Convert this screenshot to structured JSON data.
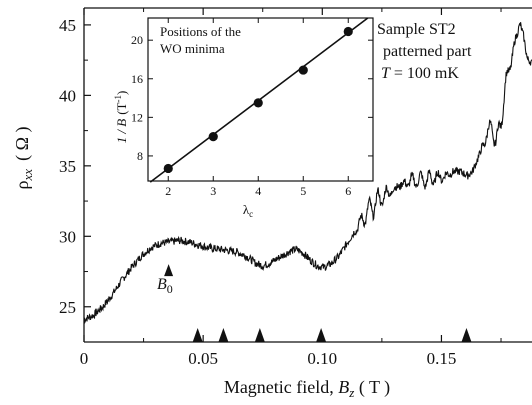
{
  "chart_data": [
    {
      "type": "line",
      "xlabel": "Magnetic field,  B_z ( T )",
      "xlabel_parts": {
        "prefix": "Magnetic field,  ",
        "var": "B",
        "sub": "z",
        "unit": " ( T )"
      },
      "ylabel_parts": {
        "var": "ρ",
        "sub": "xx",
        "unit": "( Ω )"
      },
      "xlim": [
        0,
        0.188
      ],
      "ylim": [
        22.5,
        46.2
      ],
      "x_ticks": [
        0,
        0.05,
        0.1,
        0.15
      ],
      "x_tick_labels": [
        "0",
        "0.05",
        "0.10",
        "0.15"
      ],
      "y_ticks": [
        25,
        30,
        35,
        40,
        45
      ],
      "y_tick_labels": [
        "25",
        "30",
        "35",
        "40",
        "45"
      ],
      "annotation": {
        "lines": [
          "Sample ST2",
          "patterned part"
        ],
        "temp": {
          "var": "T",
          "value": " = 100 mK"
        }
      },
      "b0_label": {
        "var": "B",
        "sub": "0"
      },
      "b0_marker": {
        "x": 0.0355,
        "y": 27.6
      },
      "wo_minima_markers_x": [
        0.0477,
        0.0585,
        0.0738,
        0.0995,
        0.1605
      ],
      "series": [
        {
          "values": [
            [
              0,
              24.1
            ],
            [
              0.004,
              24.4
            ],
            [
              0.008,
              25.0
            ],
            [
              0.012,
              25.9
            ],
            [
              0.016,
              26.9
            ],
            [
              0.02,
              27.8
            ],
            [
              0.024,
              28.6
            ],
            [
              0.028,
              29.2
            ],
            [
              0.032,
              29.5
            ],
            [
              0.036,
              29.6
            ],
            [
              0.04,
              29.7
            ],
            [
              0.044,
              29.6
            ],
            [
              0.048,
              29.4
            ],
            [
              0.052,
              29.2
            ],
            [
              0.056,
              29.1
            ],
            [
              0.06,
              29.0
            ],
            [
              0.064,
              28.9
            ],
            [
              0.068,
              28.6
            ],
            [
              0.072,
              28.1
            ],
            [
              0.075,
              27.9
            ],
            [
              0.078,
              28.1
            ],
            [
              0.082,
              28.5
            ],
            [
              0.086,
              28.9
            ],
            [
              0.089,
              29.1
            ],
            [
              0.092,
              28.8
            ],
            [
              0.095,
              28.3
            ],
            [
              0.098,
              27.9
            ],
            [
              0.101,
              27.8
            ],
            [
              0.104,
              28.1
            ],
            [
              0.107,
              28.6
            ],
            [
              0.11,
              29.4
            ],
            [
              0.113,
              30.2
            ],
            [
              0.116,
              31.0
            ],
            [
              0.119,
              31.7
            ],
            [
              0.122,
              32.3
            ],
            [
              0.125,
              32.8
            ],
            [
              0.128,
              33.1
            ],
            [
              0.131,
              33.5
            ],
            [
              0.134,
              33.7
            ],
            [
              0.137,
              33.9
            ],
            [
              0.14,
              34.0
            ],
            [
              0.143,
              34.0
            ],
            [
              0.146,
              34.1
            ],
            [
              0.149,
              34.2
            ],
            [
              0.152,
              34.3
            ],
            [
              0.155,
              34.6
            ],
            [
              0.158,
              34.6
            ],
            [
              0.161,
              34.3
            ],
            [
              0.163,
              34.6
            ],
            [
              0.166,
              35.8
            ],
            [
              0.169,
              37.2
            ],
            [
              0.171,
              37.8
            ],
            [
              0.173,
              36.6
            ],
            [
              0.175,
              38.2
            ],
            [
              0.177,
              40.8
            ],
            [
              0.179,
              42.3
            ],
            [
              0.181,
              43.9
            ],
            [
              0.183,
              45.1
            ],
            [
              0.1845,
              44.2
            ],
            [
              0.186,
              42.6
            ],
            [
              0.188,
              42.3
            ]
          ]
        }
      ],
      "oscillations": [
        {
          "from": 0.113,
          "to": 0.131,
          "amp": 0.75
        },
        {
          "from": 0.131,
          "to": 0.155,
          "amp": 0.5
        },
        {
          "from": 0.166,
          "to": 0.182,
          "amp": 0.7
        }
      ]
    },
    {
      "type": "scatter",
      "title": "Positions of the WO minima",
      "title_lines": [
        "Positions of the",
        "WO minima"
      ],
      "xlabel": "λ_c",
      "xlabel_parts": {
        "var": "λ",
        "sub": "c"
      },
      "ylabel": "1/B (T^-1)",
      "ylabel_parts": {
        "var": "1 / B",
        "unit": "(T",
        "sup": "-1",
        "close": ")"
      },
      "xlim": [
        1.55,
        6.55
      ],
      "ylim": [
        5.4,
        22.3
      ],
      "x_ticks": [
        2,
        3,
        4,
        5,
        6
      ],
      "x_tick_labels": [
        "2",
        "3",
        "4",
        "5",
        "6"
      ],
      "y_ticks": [
        8,
        12,
        16,
        20
      ],
      "y_tick_labels": [
        "8",
        "12",
        "16",
        "20"
      ],
      "x": [
        2,
        3,
        4,
        5,
        6
      ],
      "y": [
        6.7,
        10.0,
        13.5,
        16.9,
        20.9
      ],
      "fit_line": {
        "slope": 3.52,
        "intercept": -0.35
      }
    }
  ]
}
